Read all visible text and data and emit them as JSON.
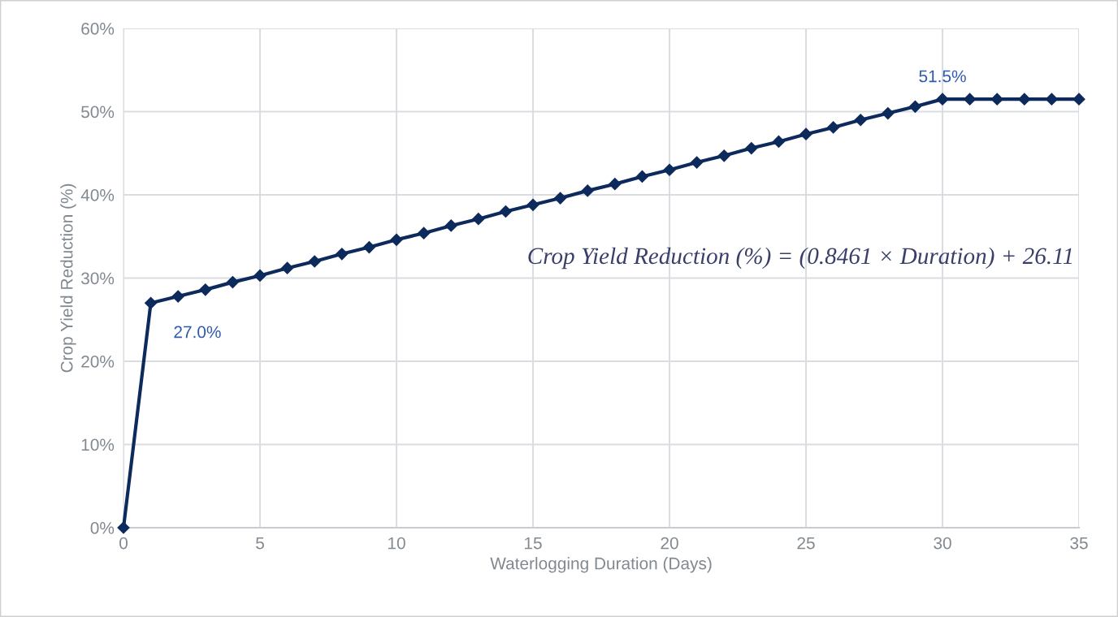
{
  "chart_data": {
    "type": "line",
    "xlabel": "Waterlogging Duration (Days)",
    "ylabel": "Crop Yield Reduction (%)",
    "x": [
      0,
      1,
      2,
      3,
      4,
      5,
      6,
      7,
      8,
      9,
      10,
      11,
      12,
      13,
      14,
      15,
      16,
      17,
      18,
      19,
      20,
      21,
      22,
      23,
      24,
      25,
      26,
      27,
      28,
      29,
      30,
      31,
      32,
      33,
      34,
      35
    ],
    "series": [
      {
        "color": "#0d2a5c",
        "values": [
          0,
          27.0,
          27.8,
          28.6,
          29.5,
          30.3,
          31.2,
          32.0,
          32.9,
          33.7,
          34.6,
          35.4,
          36.3,
          37.1,
          38.0,
          38.8,
          39.6,
          40.5,
          41.3,
          42.2,
          43.0,
          43.9,
          44.7,
          45.6,
          46.4,
          47.3,
          48.1,
          49.0,
          49.8,
          50.6,
          51.5,
          51.5,
          51.5,
          51.5,
          51.5,
          51.5
        ],
        "value_labels": [
          null,
          "27.0%",
          null,
          null,
          null,
          null,
          null,
          null,
          null,
          null,
          null,
          null,
          null,
          null,
          null,
          null,
          null,
          null,
          null,
          null,
          null,
          null,
          null,
          null,
          null,
          null,
          null,
          null,
          null,
          null,
          "51.5%",
          null,
          null,
          null,
          null,
          null
        ]
      }
    ],
    "xlim": [
      0,
      35
    ],
    "xticks": [
      0,
      5,
      10,
      15,
      20,
      25,
      30,
      35
    ],
    "ylim": [
      0,
      60
    ],
    "yticks": [
      {
        "value": 0,
        "label": "0%"
      },
      {
        "value": 10,
        "label": "10%"
      },
      {
        "value": 20,
        "label": "20%"
      },
      {
        "value": 30,
        "label": "30%"
      },
      {
        "value": 40,
        "label": "40%"
      },
      {
        "value": 50,
        "label": "50%"
      },
      {
        "value": 60,
        "label": "60%"
      }
    ],
    "grid": true,
    "marker": "diamond",
    "line_style": "solid",
    "annotations": [
      "Crop Yield Reduction (%) = (0.8461 × Duration) + 26.11"
    ]
  }
}
